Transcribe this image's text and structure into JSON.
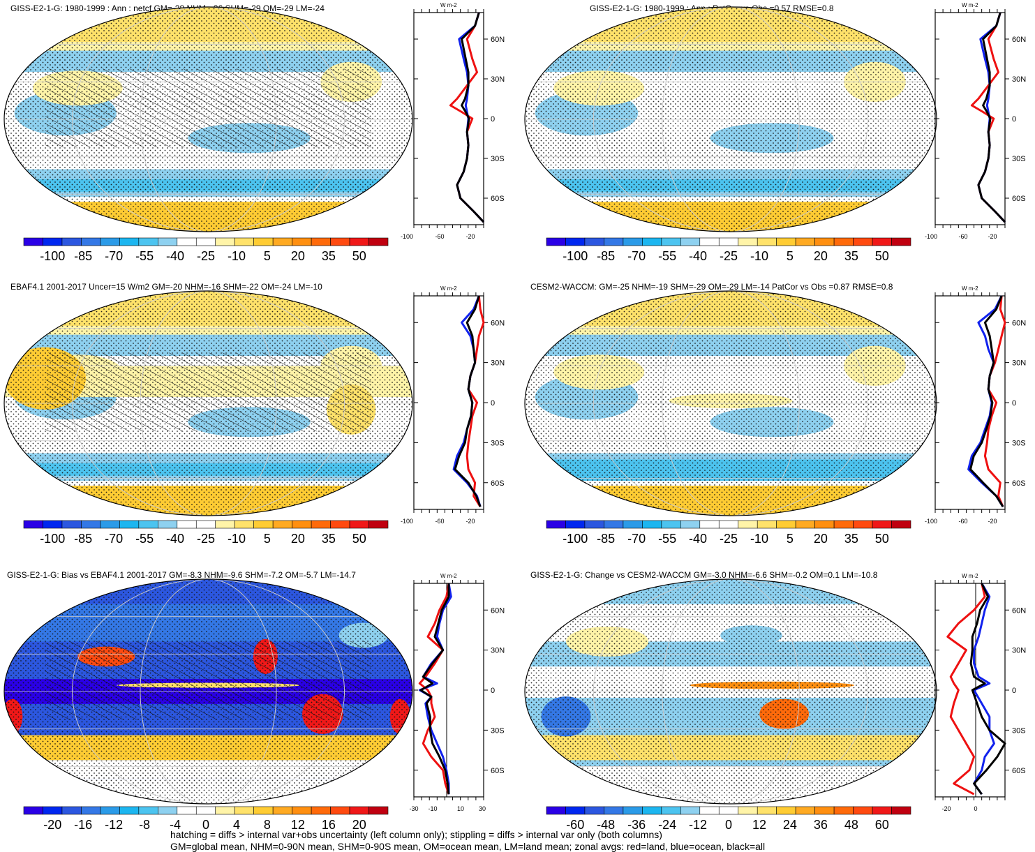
{
  "chart_data": [
    {
      "type": "heatmap",
      "title": "GISS-E2-1-G: 1980-1999 : Ann : netcf GM=-28 NHM=-26 SHM=-29 OM=-29 LM=-24",
      "colorbar_labels": [
        "-100",
        "-85",
        "-70",
        "-55",
        "-40",
        "-25",
        "-10",
        "5",
        "20",
        "35",
        "50"
      ],
      "zonal_axis": {
        "units": "W m-2",
        "x_ticks": [
          "-100",
          "-60",
          "-20"
        ],
        "y_ticks": [
          "60N",
          "30N",
          "0",
          "30S",
          "60S"
        ]
      },
      "zonal_series": [
        {
          "color": "red",
          "lat": [
            80,
            70,
            60,
            45,
            35,
            25,
            15,
            10,
            5,
            0,
            -10,
            -20,
            -30,
            -40,
            -50,
            -60,
            -70,
            -78
          ],
          "values": [
            -12,
            -18,
            -30,
            -22,
            -15,
            -30,
            -45,
            -55,
            -38,
            -22,
            -30,
            -28,
            -30,
            -35,
            -45,
            -40,
            -20,
            -5
          ]
        },
        {
          "color": "blue",
          "lat": [
            80,
            70,
            60,
            45,
            35,
            25,
            15,
            10,
            5,
            0,
            -10,
            -20,
            -30,
            -40,
            -50,
            -60,
            -70,
            -78
          ],
          "values": [
            -12,
            -18,
            -42,
            -35,
            -30,
            -28,
            -30,
            -32,
            -30,
            -28,
            -30,
            -28,
            -30,
            -35,
            -45,
            -40,
            -20,
            -5
          ]
        },
        {
          "color": "black",
          "lat": [
            80,
            70,
            60,
            45,
            35,
            25,
            15,
            10,
            5,
            0,
            -10,
            -20,
            -30,
            -40,
            -50,
            -60,
            -70,
            -78
          ],
          "values": [
            -12,
            -18,
            -38,
            -32,
            -28,
            -28,
            -33,
            -38,
            -32,
            -27,
            -30,
            -28,
            -30,
            -35,
            -45,
            -40,
            -20,
            -5
          ]
        }
      ]
    },
    {
      "type": "heatmap",
      "title": "GISS-E2-1-G: 1980-1999 : Ann : PatCor vs Obs =0.57 RMSE=0.8",
      "colorbar_labels": [
        "-100",
        "-85",
        "-70",
        "-55",
        "-40",
        "-25",
        "-10",
        "5",
        "20",
        "35",
        "50"
      ],
      "zonal_axis": {
        "units": "W m-2",
        "x_ticks": [
          "-100",
          "-60",
          "-20"
        ],
        "y_ticks": [
          "60N",
          "30N",
          "0",
          "30S",
          "60S"
        ]
      },
      "zonal_series": [
        {
          "color": "red",
          "lat": [
            80,
            70,
            60,
            45,
            35,
            25,
            15,
            10,
            5,
            0,
            -10,
            -20,
            -30,
            -40,
            -50,
            -60,
            -70,
            -78
          ],
          "values": [
            -12,
            -18,
            -30,
            -22,
            -15,
            -30,
            -45,
            -55,
            -38,
            -22,
            -30,
            -28,
            -30,
            -35,
            -45,
            -40,
            -20,
            -5
          ]
        },
        {
          "color": "blue",
          "lat": [
            80,
            70,
            60,
            45,
            35,
            25,
            15,
            10,
            5,
            0,
            -10,
            -20,
            -30,
            -40,
            -50,
            -60,
            -70,
            -78
          ],
          "values": [
            -12,
            -18,
            -42,
            -35,
            -30,
            -28,
            -30,
            -32,
            -30,
            -28,
            -30,
            -28,
            -30,
            -35,
            -45,
            -40,
            -20,
            -5
          ]
        },
        {
          "color": "black",
          "lat": [
            80,
            70,
            60,
            45,
            35,
            25,
            15,
            10,
            5,
            0,
            -10,
            -20,
            -30,
            -40,
            -50,
            -60,
            -70,
            -78
          ],
          "values": [
            -12,
            -18,
            -38,
            -32,
            -28,
            -28,
            -33,
            -38,
            -32,
            -27,
            -30,
            -28,
            -30,
            -35,
            -45,
            -40,
            -20,
            -5
          ]
        }
      ]
    },
    {
      "type": "heatmap",
      "title": "EBAF4.1 2001-2017 Uncer=15 W/m2 GM=-20 NHM=-16 SHM=-22 OM=-24 LM=-10",
      "colorbar_labels": [
        "-100",
        "-85",
        "-70",
        "-55",
        "-40",
        "-25",
        "-10",
        "5",
        "20",
        "35",
        "50"
      ],
      "zonal_axis": {
        "units": "W m-2",
        "x_ticks": [
          "-100",
          "-60",
          "-20"
        ],
        "y_ticks": [
          "60N",
          "30N",
          "0",
          "30S",
          "60S"
        ]
      },
      "zonal_series": [
        {
          "color": "red",
          "lat": [
            80,
            70,
            60,
            50,
            40,
            30,
            20,
            10,
            0,
            -10,
            -20,
            -30,
            -40,
            -50,
            -60,
            -70,
            -78
          ],
          "values": [
            -12,
            -10,
            -5,
            -12,
            -15,
            -18,
            -25,
            -28,
            -15,
            -22,
            -25,
            -28,
            -30,
            -28,
            -18,
            -20,
            -10
          ]
        },
        {
          "color": "blue",
          "lat": [
            80,
            70,
            60,
            50,
            40,
            30,
            20,
            10,
            0,
            -10,
            -20,
            -30,
            -40,
            -50,
            -60,
            -70,
            -78
          ],
          "values": [
            -12,
            -20,
            -38,
            -25,
            -20,
            -18,
            -25,
            -28,
            -22,
            -24,
            -30,
            -35,
            -45,
            -50,
            -30,
            -15,
            -10
          ]
        },
        {
          "color": "black",
          "lat": [
            80,
            70,
            60,
            50,
            40,
            30,
            20,
            10,
            0,
            -10,
            -20,
            -30,
            -40,
            -50,
            -60,
            -70,
            -78
          ],
          "values": [
            -12,
            -18,
            -30,
            -22,
            -20,
            -18,
            -25,
            -28,
            -22,
            -24,
            -30,
            -33,
            -42,
            -48,
            -28,
            -16,
            -10
          ]
        }
      ]
    },
    {
      "type": "heatmap",
      "title": "CESM2-WACCM: GM=-25 NHM=-19 SHM=-29 OM=-29 LM=-14 PatCor vs Obs =0.87 RMSE=0.8",
      "colorbar_labels": [
        "-100",
        "-85",
        "-70",
        "-55",
        "-40",
        "-25",
        "-10",
        "5",
        "20",
        "35",
        "50"
      ],
      "zonal_axis": {
        "units": "W m-2",
        "x_ticks": [
          "-100",
          "-60",
          "-20"
        ],
        "y_ticks": [
          "60N",
          "30N",
          "0",
          "30S",
          "60S"
        ]
      },
      "zonal_series": [
        {
          "color": "red",
          "lat": [
            80,
            70,
            60,
            50,
            40,
            30,
            20,
            10,
            0,
            -10,
            -20,
            -30,
            -40,
            -50,
            -60,
            -70,
            -78
          ],
          "values": [
            -10,
            -12,
            -5,
            -10,
            -15,
            -20,
            -28,
            -30,
            -18,
            -25,
            -30,
            -32,
            -35,
            -30,
            -12,
            -15,
            -8
          ]
        },
        {
          "color": "blue",
          "lat": [
            80,
            70,
            60,
            50,
            40,
            30,
            20,
            10,
            0,
            -10,
            -20,
            -30,
            -40,
            -50,
            -60,
            -70,
            -78
          ],
          "values": [
            -10,
            -20,
            -45,
            -35,
            -30,
            -22,
            -28,
            -30,
            -25,
            -28,
            -35,
            -42,
            -55,
            -60,
            -40,
            -18,
            -8
          ]
        },
        {
          "color": "black",
          "lat": [
            80,
            70,
            60,
            50,
            40,
            30,
            20,
            10,
            0,
            -10,
            -20,
            -30,
            -40,
            -50,
            -60,
            -70,
            -78
          ],
          "values": [
            -10,
            -18,
            -35,
            -28,
            -25,
            -22,
            -28,
            -30,
            -24,
            -27,
            -33,
            -40,
            -52,
            -57,
            -38,
            -18,
            -8
          ]
        }
      ]
    },
    {
      "type": "heatmap",
      "title": "GISS-E2-1-G: Bias vs EBAF4.1 2001-2017 GM=-8.3 NHM=-9.6 SHM=-7.2 OM=-5.7 LM=-14.7",
      "colorbar_labels": [
        "-20",
        "-16",
        "-12",
        "-8",
        "-4",
        "0",
        "4",
        "8",
        "12",
        "16",
        "20"
      ],
      "zonal_axis": {
        "units": "W m-2",
        "x_ticks": [
          "-30",
          "-10",
          "10",
          "30"
        ],
        "y_ticks": [
          "60N",
          "30N",
          "0",
          "30S",
          "60S"
        ]
      },
      "zonal_series": [
        {
          "color": "red",
          "lat": [
            80,
            70,
            60,
            50,
            40,
            30,
            20,
            10,
            5,
            0,
            -5,
            -10,
            -20,
            -30,
            -40,
            -50,
            -60,
            -70,
            -78
          ],
          "values": [
            0,
            -2,
            -8,
            -12,
            -18,
            -5,
            -12,
            -20,
            -25,
            -18,
            -15,
            -15,
            -12,
            -18,
            -22,
            -15,
            -5,
            -3,
            0
          ]
        },
        {
          "color": "blue",
          "lat": [
            80,
            70,
            60,
            50,
            40,
            30,
            20,
            10,
            5,
            0,
            -5,
            -10,
            -20,
            -30,
            -40,
            -50,
            -60,
            -70,
            -78
          ],
          "values": [
            0,
            2,
            -5,
            -8,
            -10,
            -5,
            -15,
            -22,
            -10,
            -25,
            -15,
            -20,
            -18,
            -15,
            -10,
            -5,
            -2,
            0,
            0
          ]
        },
        {
          "color": "black",
          "lat": [
            80,
            70,
            60,
            50,
            40,
            30,
            20,
            10,
            5,
            0,
            -5,
            -10,
            -20,
            -30,
            -40,
            -50,
            -60,
            -70,
            -78
          ],
          "values": [
            0,
            0,
            -6,
            -9,
            -12,
            -5,
            -14,
            -22,
            -14,
            -24,
            -15,
            -19,
            -16,
            -16,
            -14,
            -8,
            -3,
            -1,
            0
          ]
        }
      ]
    },
    {
      "type": "heatmap",
      "title": "GISS-E2-1-G: Change vs CESM2-WACCM GM=-3.0 NHM=-6.6 SHM=-0.2 OM=0.1 LM=-10.8",
      "colorbar_labels": [
        "-60",
        "-48",
        "-36",
        "-24",
        "-12",
        "0",
        "12",
        "24",
        "36",
        "48",
        "60"
      ],
      "zonal_axis": {
        "units": "W m-2",
        "x_ticks": [
          "-20",
          "0"
        ],
        "y_ticks": [
          "60N",
          "30N",
          "0",
          "30S",
          "60S"
        ]
      },
      "zonal_series": [
        {
          "color": "red",
          "lat": [
            80,
            70,
            60,
            50,
            40,
            30,
            20,
            10,
            5,
            0,
            -10,
            -20,
            -30,
            -40,
            -50,
            -60,
            -70,
            -78
          ],
          "values": [
            0,
            2,
            -5,
            -15,
            -22,
            -10,
            -15,
            -20,
            -18,
            -15,
            -18,
            -20,
            -15,
            -10,
            -5,
            -8,
            -18,
            -5
          ]
        },
        {
          "color": "blue",
          "lat": [
            80,
            70,
            60,
            50,
            40,
            30,
            20,
            10,
            5,
            0,
            -10,
            -20,
            -30,
            -40,
            -50,
            -60,
            -70,
            -78
          ],
          "values": [
            0,
            5,
            2,
            0,
            -2,
            -5,
            -5,
            -2,
            5,
            -5,
            0,
            5,
            5,
            8,
            2,
            0,
            -5,
            0
          ]
        },
        {
          "color": "black",
          "lat": [
            80,
            70,
            60,
            50,
            40,
            30,
            20,
            10,
            5,
            0,
            -10,
            -20,
            -30,
            -40,
            -50,
            -60,
            -70,
            -78
          ],
          "values": [
            0,
            4,
            -1,
            -3,
            -6,
            -6,
            -7,
            -5,
            2,
            -6,
            -3,
            0,
            5,
            15,
            10,
            3,
            -5,
            0
          ]
        }
      ]
    }
  ],
  "footer": {
    "line1": "hatching = diffs > internal var+obs uncertainty (left column only); stippling = diffs > internal var only (both columns)",
    "line2": "GM=global mean, NHM=0-90N mean, SHM=0-90S mean, OM=ocean mean, LM=land mean; zonal avgs: red=land, blue=ocean, black=all"
  }
}
